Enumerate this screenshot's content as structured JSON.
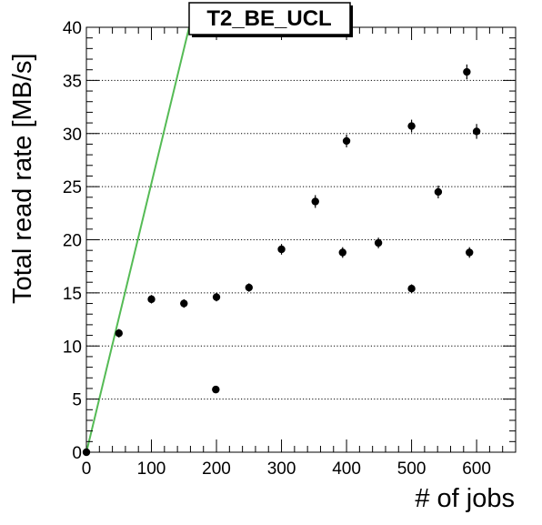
{
  "chart_data": {
    "type": "scatter",
    "title": "T2_BE_UCL",
    "xlabel": "# of jobs",
    "ylabel": "Total read rate [MB/s]",
    "xlim": [
      0,
      660
    ],
    "ylim": [
      0,
      40
    ],
    "x_ticks": [
      0,
      100,
      200,
      300,
      400,
      500,
      600
    ],
    "y_ticks": [
      0,
      5,
      10,
      15,
      20,
      25,
      30,
      35,
      40
    ],
    "grid": "horizontal-dotted",
    "points": [
      {
        "x": 0,
        "y": 0.0,
        "yerr": 0.3
      },
      {
        "x": 50,
        "y": 11.2,
        "yerr": 0.4
      },
      {
        "x": 100,
        "y": 14.4,
        "yerr": 0.4
      },
      {
        "x": 150,
        "y": 14.0,
        "yerr": 0.4
      },
      {
        "x": 200,
        "y": 14.6,
        "yerr": 0.4
      },
      {
        "x": 199,
        "y": 5.9,
        "yerr": 0.3
      },
      {
        "x": 250,
        "y": 15.5,
        "yerr": 0.4
      },
      {
        "x": 300,
        "y": 19.1,
        "yerr": 0.5
      },
      {
        "x": 352,
        "y": 23.6,
        "yerr": 0.6
      },
      {
        "x": 394,
        "y": 18.8,
        "yerr": 0.5
      },
      {
        "x": 400,
        "y": 29.3,
        "yerr": 0.6
      },
      {
        "x": 449,
        "y": 19.7,
        "yerr": 0.5
      },
      {
        "x": 500,
        "y": 30.7,
        "yerr": 0.6
      },
      {
        "x": 500,
        "y": 15.4,
        "yerr": 0.4
      },
      {
        "x": 541,
        "y": 24.5,
        "yerr": 0.6
      },
      {
        "x": 585,
        "y": 35.8,
        "yerr": 0.7
      },
      {
        "x": 589,
        "y": 18.8,
        "yerr": 0.5
      },
      {
        "x": 600,
        "y": 30.2,
        "yerr": 0.7
      }
    ],
    "reference_line": {
      "x": [
        0,
        158
      ],
      "y": [
        0,
        40
      ],
      "color": "#55bb55"
    },
    "colors": {
      "marker": "#000000",
      "axis": "#000000",
      "grid": "#000000",
      "line": "#55bb55"
    }
  }
}
